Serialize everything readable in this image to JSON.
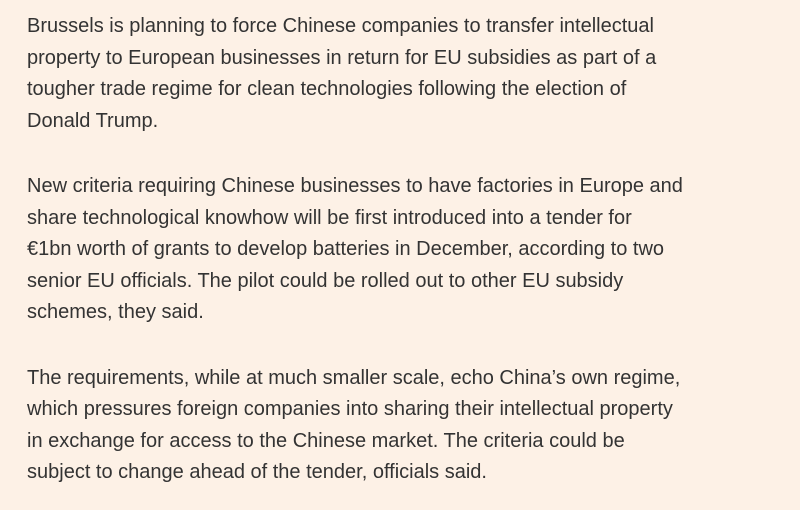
{
  "article": {
    "paragraphs": [
      {
        "lines": [
          "Brussels is planning to force Chinese companies to transfer intellectual",
          "property to European businesses in return for EU subsidies as part of a",
          "tougher trade regime for clean technologies following the election of",
          "Donald Trump."
        ]
      },
      {
        "lines": [
          "New criteria requiring Chinese businesses to have factories in Europe and",
          "share technological knowhow will be first introduced into a tender for",
          "€1bn worth of grants to develop batteries in December, according to two",
          "senior EU officials. The pilot could be rolled out to other EU subsidy",
          "schemes, they said."
        ]
      },
      {
        "lines": [
          "The requirements, while at much smaller scale, echo China’s own regime,",
          "which pressures foreign companies into sharing their intellectual property",
          "in exchange for access to the Chinese market. The criteria could be",
          "subject to change ahead of the tender, officials said."
        ]
      }
    ]
  },
  "colors": {
    "background": "#fdf1e6",
    "text": "#333333"
  }
}
